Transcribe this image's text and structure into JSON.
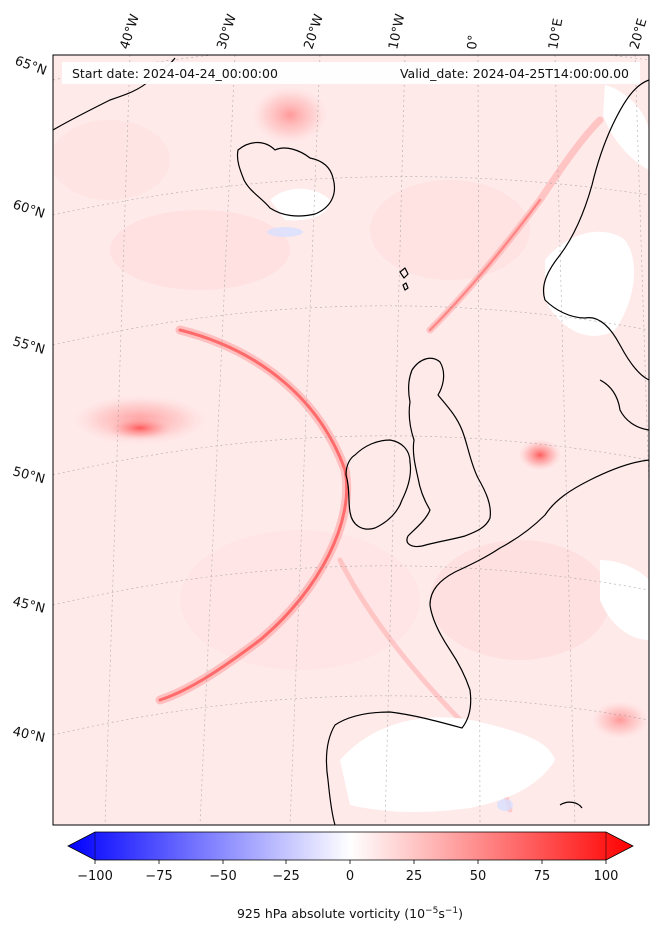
{
  "header": {
    "start_date": "Start date: 2024-04-24_00:00:00",
    "valid_date": "Valid_date: 2024-04-25T14:00:00.00"
  },
  "lon_labels": [
    "40°W",
    "30°W",
    "20°W",
    "10°W",
    "0°",
    "10°E",
    "20°E"
  ],
  "lat_labels": [
    "65°N",
    "60°N",
    "55°N",
    "50°N",
    "45°N",
    "40°N"
  ],
  "colorbar": {
    "ticks": [
      "−100",
      "−75",
      "−50",
      "−25",
      "0",
      "25",
      "50",
      "75",
      "100"
    ],
    "title_main": "925 hPa absolute vorticity (10",
    "title_exp1": "−5",
    "title_mid": "s",
    "title_exp2": "−1",
    "title_end": ")",
    "min_color": "#0000ff",
    "mid_color": "#ffffff",
    "max_color": "#ff0000"
  },
  "colors": {
    "background_field": "#ffe9e9",
    "land_line": "#000000",
    "grid_line": "#999999"
  }
}
